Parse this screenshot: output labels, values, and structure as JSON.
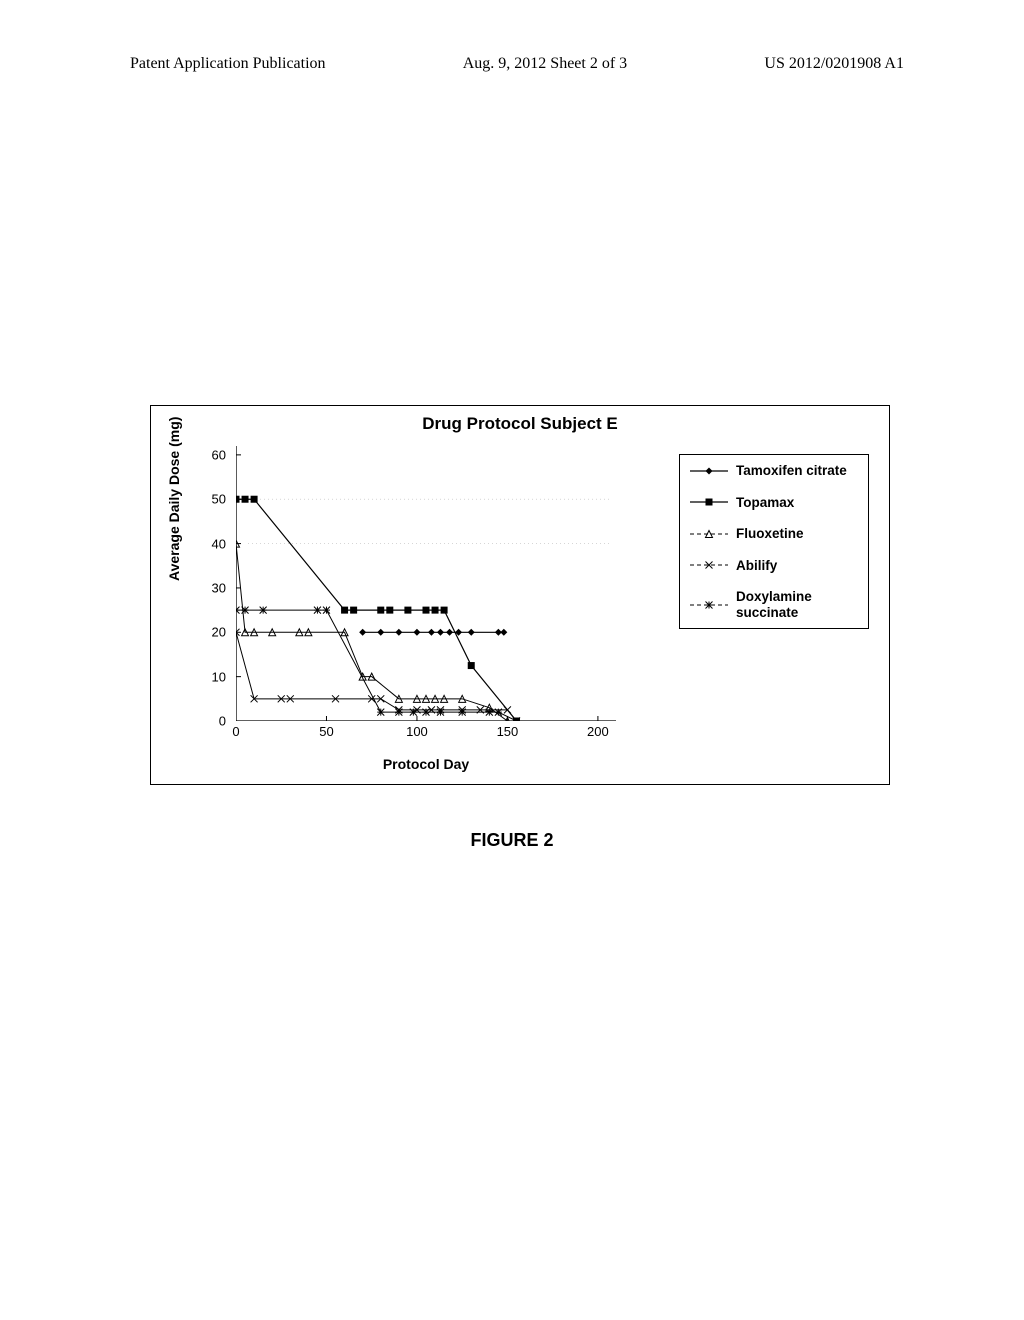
{
  "header": {
    "left": "Patent Application Publication",
    "center": "Aug. 9, 2012  Sheet 2 of 3",
    "right": "US 2012/0201908 A1"
  },
  "figure_caption": "FIGURE 2",
  "chart": {
    "type": "line",
    "title": "Drug Protocol Subject E",
    "x_label": "Protocol Day",
    "y_label": "Average Daily Dose (mg)",
    "xlim": [
      0,
      210
    ],
    "ylim": [
      0,
      62
    ],
    "xticks": [
      0,
      50,
      100,
      150,
      200
    ],
    "yticks": [
      0,
      10,
      20,
      30,
      40,
      50,
      60
    ],
    "background_color": "#ffffff",
    "axis_color": "#000000",
    "grid_color": "#d0d0d0",
    "font_size_title": 17,
    "font_size_label": 14,
    "font_size_tick": 13,
    "series": [
      {
        "name": "Tamoxifen citrate",
        "marker": "diamond-solid",
        "color": "#000000",
        "line_width": 1.2,
        "points": [
          [
            70,
            20
          ],
          [
            80,
            20
          ],
          [
            90,
            20
          ],
          [
            100,
            20
          ],
          [
            108,
            20
          ],
          [
            113,
            20
          ],
          [
            118,
            20
          ],
          [
            123,
            20
          ],
          [
            130,
            20
          ],
          [
            145,
            20
          ],
          [
            148,
            20
          ]
        ]
      },
      {
        "name": "Topamax",
        "marker": "square-solid",
        "color": "#000000",
        "line_width": 1.2,
        "points": [
          [
            0,
            50
          ],
          [
            5,
            50
          ],
          [
            10,
            50
          ],
          [
            60,
            25
          ],
          [
            65,
            25
          ],
          [
            80,
            25
          ],
          [
            85,
            25
          ],
          [
            95,
            25
          ],
          [
            105,
            25
          ],
          [
            110,
            25
          ],
          [
            115,
            25
          ],
          [
            130,
            12.5
          ],
          [
            155,
            0
          ]
        ]
      },
      {
        "name": "Fluoxetine",
        "marker": "triangle-open",
        "color": "#000000",
        "line_width": 1.0,
        "points": [
          [
            0,
            40
          ],
          [
            5,
            20
          ],
          [
            10,
            20
          ],
          [
            20,
            20
          ],
          [
            35,
            20
          ],
          [
            40,
            20
          ],
          [
            60,
            20
          ],
          [
            70,
            10
          ],
          [
            75,
            10
          ],
          [
            90,
            5
          ],
          [
            100,
            5
          ],
          [
            105,
            5
          ],
          [
            110,
            5
          ],
          [
            115,
            5
          ],
          [
            125,
            5
          ],
          [
            140,
            3
          ],
          [
            150,
            0
          ]
        ]
      },
      {
        "name": "Abilify",
        "marker": "x",
        "color": "#000000",
        "line_width": 1.0,
        "points": [
          [
            0,
            20
          ],
          [
            10,
            5
          ],
          [
            25,
            5
          ],
          [
            30,
            5
          ],
          [
            55,
            5
          ],
          [
            75,
            5
          ],
          [
            80,
            5
          ],
          [
            90,
            2.5
          ],
          [
            100,
            2.5
          ],
          [
            108,
            2.5
          ],
          [
            113,
            2.5
          ],
          [
            125,
            2.5
          ],
          [
            135,
            2.5
          ],
          [
            150,
            2.5
          ],
          [
            155,
            0
          ]
        ]
      },
      {
        "name": "Doxylamine succinate",
        "marker": "asterisk",
        "color": "#000000",
        "line_width": 1.0,
        "points": [
          [
            0,
            25
          ],
          [
            5,
            25
          ],
          [
            15,
            25
          ],
          [
            45,
            25
          ],
          [
            50,
            25
          ],
          [
            80,
            2
          ],
          [
            90,
            2
          ],
          [
            98,
            2
          ],
          [
            105,
            2
          ],
          [
            113,
            2
          ],
          [
            125,
            2
          ],
          [
            140,
            2
          ],
          [
            145,
            2
          ],
          [
            155,
            0
          ]
        ]
      }
    ],
    "legend": {
      "position": "right",
      "border": true,
      "items": [
        {
          "label": "Tamoxifen citrate",
          "series": 0
        },
        {
          "label": "Topamax",
          "series": 1
        },
        {
          "label": "Fluoxetine",
          "series": 2
        },
        {
          "label": "Abilify",
          "series": 3
        },
        {
          "label": "Doxylamine succinate",
          "series": 4
        }
      ]
    }
  }
}
